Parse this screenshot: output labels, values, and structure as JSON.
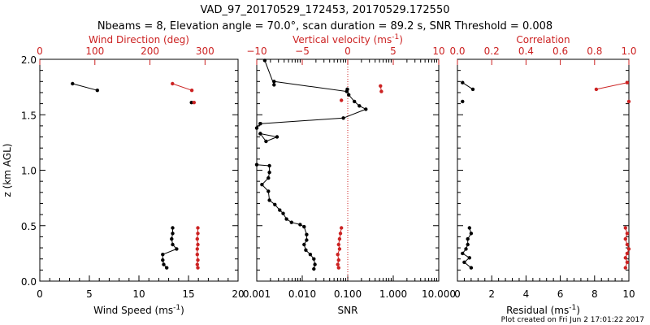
{
  "title_line1": "VAD_97_20170529_172453, 20170529.172550",
  "title_line2": "Nbeams = 8, Elevation angle = 70.0°, scan duration = 89.2 s, SNR Threshold = 0.008",
  "footer": "Plot created on Fri Jun  2 17:01:22 2017",
  "colors": {
    "primary": "#000000",
    "secondary": "#cc2222"
  },
  "chart_data": [
    {
      "type": "line",
      "id": "panel1",
      "ylabel": "z (km AGL)",
      "ylim": [
        0,
        2
      ],
      "yticks": [
        "0.0",
        "0.5",
        "1.0",
        "1.5",
        "2.0"
      ],
      "xlabel": "Wind Speed (ms",
      "xlabel_sup": "-1",
      "xlabel_end": ")",
      "xlim": [
        0,
        20
      ],
      "xticks": [
        "0",
        "5",
        "10",
        "15",
        "20"
      ],
      "top_xlabel": "Wind Direction (deg)",
      "top_xlim": [
        0,
        360
      ],
      "top_xticks": [
        "0",
        "100",
        "200",
        "300"
      ],
      "series": [
        {
          "axis": "bottom",
          "segments": [
            [
              [
                3.3,
                1.78
              ],
              [
                5.8,
                1.72
              ]
            ],
            [
              [
                15.3,
                1.61
              ]
            ],
            [
              [
                13.4,
                0.48
              ],
              [
                13.4,
                0.43
              ],
              [
                13.3,
                0.38
              ],
              [
                13.4,
                0.33
              ],
              [
                13.8,
                0.29
              ],
              [
                12.4,
                0.24
              ],
              [
                12.4,
                0.19
              ],
              [
                12.5,
                0.15
              ],
              [
                12.8,
                0.12
              ]
            ]
          ]
        },
        {
          "axis": "top",
          "segments": [
            [
              [
                241,
                1.78
              ],
              [
                276,
                1.72
              ]
            ],
            [
              [
                280,
                1.61
              ]
            ],
            [
              [
                287,
                0.48
              ],
              [
                287,
                0.43
              ],
              [
                286,
                0.38
              ],
              [
                287,
                0.33
              ],
              [
                286,
                0.29
              ],
              [
                286,
                0.24
              ],
              [
                287,
                0.19
              ],
              [
                286,
                0.15
              ],
              [
                287,
                0.12
              ]
            ]
          ]
        }
      ]
    },
    {
      "type": "line",
      "id": "panel2",
      "xscale": "log",
      "xlabel": "SNR",
      "xlim": [
        0.001,
        10
      ],
      "xticks": [
        "0.001",
        "0.010",
        "0.100",
        "1.000",
        "10.000"
      ],
      "top_xlabel": "Vertical velocity (ms",
      "top_xlabel_sup": "-1",
      "top_xlabel_end": ")",
      "top_xlim": [
        -10,
        10
      ],
      "top_xticks": [
        "−10",
        "−5",
        "0",
        "5",
        "10"
      ],
      "reference_line": {
        "axis": "top",
        "value": 0
      },
      "series": [
        {
          "axis": "bottom",
          "segments": [
            [
              [
                0.0015,
                1.99
              ],
              [
                0.0024,
                1.77
              ]
            ],
            [
              [
                0.0024,
                1.8
              ],
              [
                0.095,
                1.71
              ],
              [
                0.098,
                1.73
              ]
            ],
            [
              [
                0.098,
                1.73
              ],
              [
                0.105,
                1.68
              ],
              [
                0.14,
                1.62
              ],
              [
                0.18,
                1.58
              ],
              [
                0.25,
                1.55
              ],
              [
                0.08,
                1.47
              ],
              [
                0.0012,
                1.42
              ]
            ],
            [
              [
                0.0012,
                1.42
              ],
              [
                0.001,
                1.38
              ]
            ],
            [
              [
                0.0012,
                1.33
              ],
              [
                0.0028,
                1.3
              ],
              [
                0.0016,
                1.26
              ],
              [
                0.0012,
                1.33
              ]
            ],
            [
              [
                0.001,
                1.05
              ],
              [
                0.0019,
                1.04
              ],
              [
                0.0019,
                0.98
              ],
              [
                0.0018,
                0.93
              ],
              [
                0.0013,
                0.87
              ],
              [
                0.0018,
                0.81
              ],
              [
                0.0019,
                0.73
              ],
              [
                0.0025,
                0.69
              ],
              [
                0.0032,
                0.64
              ],
              [
                0.0038,
                0.61
              ],
              [
                0.0045,
                0.56
              ],
              [
                0.0058,
                0.53
              ],
              [
                0.009,
                0.51
              ],
              [
                0.011,
                0.49
              ],
              [
                0.0125,
                0.42
              ],
              [
                0.0125,
                0.37
              ],
              [
                0.011,
                0.33
              ],
              [
                0.012,
                0.28
              ],
              [
                0.015,
                0.24
              ],
              [
                0.018,
                0.2
              ],
              [
                0.019,
                0.15
              ],
              [
                0.018,
                0.11
              ]
            ]
          ]
        },
        {
          "axis": "top",
          "segments": [
            [
              [
                3.6,
                1.76
              ],
              [
                3.7,
                1.71
              ]
            ],
            [
              [
                -0.7,
                1.63
              ]
            ],
            [
              [
                -0.7,
                0.48
              ],
              [
                -0.8,
                0.43
              ],
              [
                -0.9,
                0.38
              ],
              [
                -1.0,
                0.33
              ],
              [
                -0.9,
                0.29
              ],
              [
                -1.1,
                0.24
              ],
              [
                -1.0,
                0.19
              ],
              [
                -1.1,
                0.15
              ],
              [
                -1.0,
                0.12
              ]
            ]
          ]
        }
      ]
    },
    {
      "type": "line",
      "id": "panel3",
      "xlabel": "Residual (ms",
      "xlabel_sup": "-1",
      "xlabel_end": ")",
      "xlim": [
        0,
        10
      ],
      "xticks": [
        "0",
        "2",
        "4",
        "6",
        "8",
        "10"
      ],
      "top_xlabel": "Correlation",
      "top_xlim": [
        0,
        1
      ],
      "top_xticks": [
        "0.0",
        "0.2",
        "0.4",
        "0.6",
        "0.8",
        "1.0"
      ],
      "series": [
        {
          "axis": "bottom",
          "segments": [
            [
              [
                0.3,
                1.79
              ],
              [
                0.9,
                1.73
              ]
            ],
            [
              [
                0.3,
                1.62
              ]
            ],
            [
              [
                0.7,
                0.48
              ],
              [
                0.8,
                0.43
              ],
              [
                0.6,
                0.38
              ],
              [
                0.6,
                0.33
              ],
              [
                0.5,
                0.29
              ],
              [
                0.3,
                0.25
              ],
              [
                0.7,
                0.21
              ],
              [
                0.4,
                0.17
              ],
              [
                0.8,
                0.12
              ]
            ]
          ]
        },
        {
          "axis": "top",
          "segments": [
            [
              [
                0.81,
                1.73
              ],
              [
                0.99,
                1.79
              ]
            ],
            [
              [
                1.0,
                1.62
              ]
            ],
            [
              [
                0.98,
                0.48
              ],
              [
                0.99,
                0.43
              ],
              [
                0.98,
                0.38
              ],
              [
                0.99,
                0.33
              ],
              [
                1.0,
                0.29
              ],
              [
                0.99,
                0.25
              ],
              [
                0.98,
                0.21
              ],
              [
                0.99,
                0.17
              ],
              [
                0.98,
                0.12
              ]
            ]
          ]
        }
      ]
    }
  ]
}
